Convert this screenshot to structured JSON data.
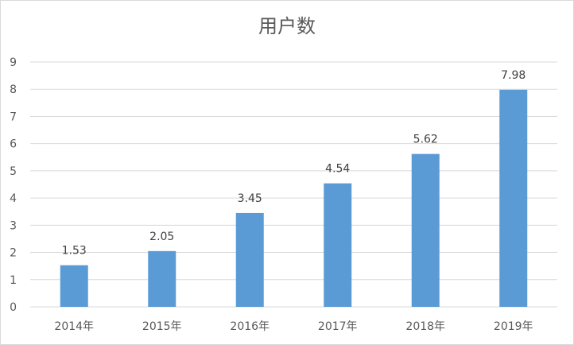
{
  "chart_data": {
    "type": "bar",
    "title": "用户数",
    "categories": [
      "2014年",
      "2015年",
      "2016年",
      "2017年",
      "2018年",
      "2019年"
    ],
    "values": [
      1.53,
      2.05,
      3.45,
      4.54,
      5.62,
      7.98
    ],
    "data_labels": [
      "1.53",
      "2.05",
      "3.45",
      "4.54",
      "5.62",
      "7.98"
    ],
    "xlabel": "",
    "ylabel": "",
    "ylim": [
      0,
      9
    ],
    "y_ticks": [
      "0",
      "1",
      "2",
      "3",
      "4",
      "5",
      "6",
      "7",
      "8",
      "9"
    ],
    "grid": true,
    "legend": "none",
    "bar_color": "#5b9bd5"
  }
}
